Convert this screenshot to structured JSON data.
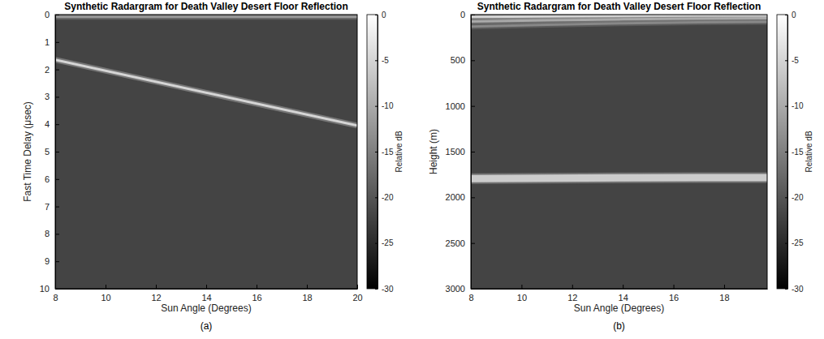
{
  "chart_data": [
    {
      "type": "radargram",
      "title": "Synthetic Radargram for Death Valley Desert Floor Reflection",
      "caption": "(a)",
      "xlabel": "Sun Angle (Degrees)",
      "ylabel": "Fast Time Delay (μsec)",
      "xlim": [
        8,
        20
      ],
      "xticks": [
        8,
        10,
        12,
        14,
        16,
        18,
        20
      ],
      "ylim": [
        10,
        0
      ],
      "yticks": [
        0,
        1,
        2,
        3,
        4,
        5,
        6,
        7,
        8,
        9,
        10
      ],
      "noise_floor_db": -22,
      "series": [
        {
          "x": [
            8,
            20
          ],
          "values": [
            0.08,
            0.08
          ],
          "level_db": -12,
          "line_style": "solid"
        },
        {
          "x": [
            8,
            20
          ],
          "values": [
            1.65,
            4.05
          ],
          "level_db": -5,
          "line_style": "solid"
        }
      ],
      "colorbar": {
        "label": "Relative dB",
        "range": [
          -30,
          0
        ],
        "ticks": [
          0,
          -5,
          -10,
          -15,
          -20,
          -25,
          -30
        ]
      }
    },
    {
      "type": "radargram",
      "title": "Synthetic Radargram for Death Valley Desert Floor Reflection",
      "caption": "(b)",
      "xlabel": "Sun Angle (Degrees)",
      "ylabel": "Height (m)",
      "xlim": [
        8,
        19.7
      ],
      "xticks": [
        8,
        10,
        12,
        14,
        16,
        18
      ],
      "ylim": [
        3000,
        0
      ],
      "yticks": [
        0,
        500,
        1000,
        1500,
        2000,
        2500,
        3000
      ],
      "noise_floor_db": -22,
      "series": [
        {
          "x": [
            8,
            11,
            14,
            17,
            19.7
          ],
          "values": [
            25,
            20,
            15,
            12,
            10
          ],
          "level_db": -5,
          "line_style": "solid"
        },
        {
          "x": [
            8,
            11,
            14,
            17,
            19.7
          ],
          "values": [
            75,
            62,
            52,
            45,
            40
          ],
          "level_db": -10,
          "line_style": "solid"
        },
        {
          "x": [
            8,
            11,
            14,
            17,
            19.7
          ],
          "values": [
            130,
            110,
            95,
            85,
            80
          ],
          "level_db": -14,
          "line_style": "solid"
        },
        {
          "x": [
            8,
            11,
            14,
            17,
            19.7
          ],
          "values": [
            1795,
            1790,
            1787,
            1785,
            1783
          ],
          "level_db": -6,
          "line_style": "bold"
        }
      ],
      "colorbar": {
        "label": "Relative dB",
        "range": [
          -30,
          0
        ],
        "ticks": [
          0,
          -5,
          -10,
          -15,
          -20,
          -25,
          -30
        ]
      }
    }
  ]
}
